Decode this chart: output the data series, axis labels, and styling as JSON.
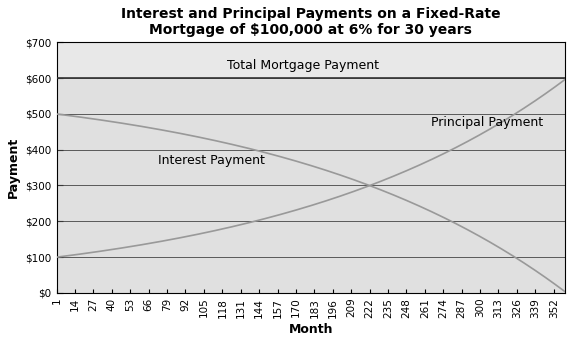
{
  "title_line1": "Interest and Principal Payments on a Fixed-Rate",
  "title_line2": "Mortgage of $100,000 at 6% for 30 years",
  "xlabel": "Month",
  "ylabel": "Payment",
  "loan": 100000,
  "annual_rate": 0.06,
  "months": 360,
  "ylim": [
    0,
    700
  ],
  "yticks": [
    0,
    100,
    200,
    300,
    400,
    500,
    600,
    700
  ],
  "ytick_labels": [
    "$0",
    "$100",
    "$200",
    "$300",
    "$400",
    "$500",
    "$600",
    "$700"
  ],
  "xticks": [
    1,
    14,
    27,
    40,
    53,
    66,
    79,
    92,
    105,
    118,
    131,
    144,
    157,
    170,
    183,
    196,
    209,
    222,
    235,
    248,
    261,
    274,
    287,
    300,
    313,
    326,
    339,
    352
  ],
  "line_color": "#999999",
  "total_line_color": "#333333",
  "plot_bg_color": "#e8e8e8",
  "fill_color": "#dcdcdc",
  "outer_bg_color": "#f0f0f0",
  "label_interest": "Interest Payment",
  "label_principal": "Principal Payment",
  "label_total": "Total Mortgage Payment",
  "title_fontsize": 10,
  "axis_label_fontsize": 9,
  "tick_fontsize": 7.5,
  "annotation_fontsize": 9
}
